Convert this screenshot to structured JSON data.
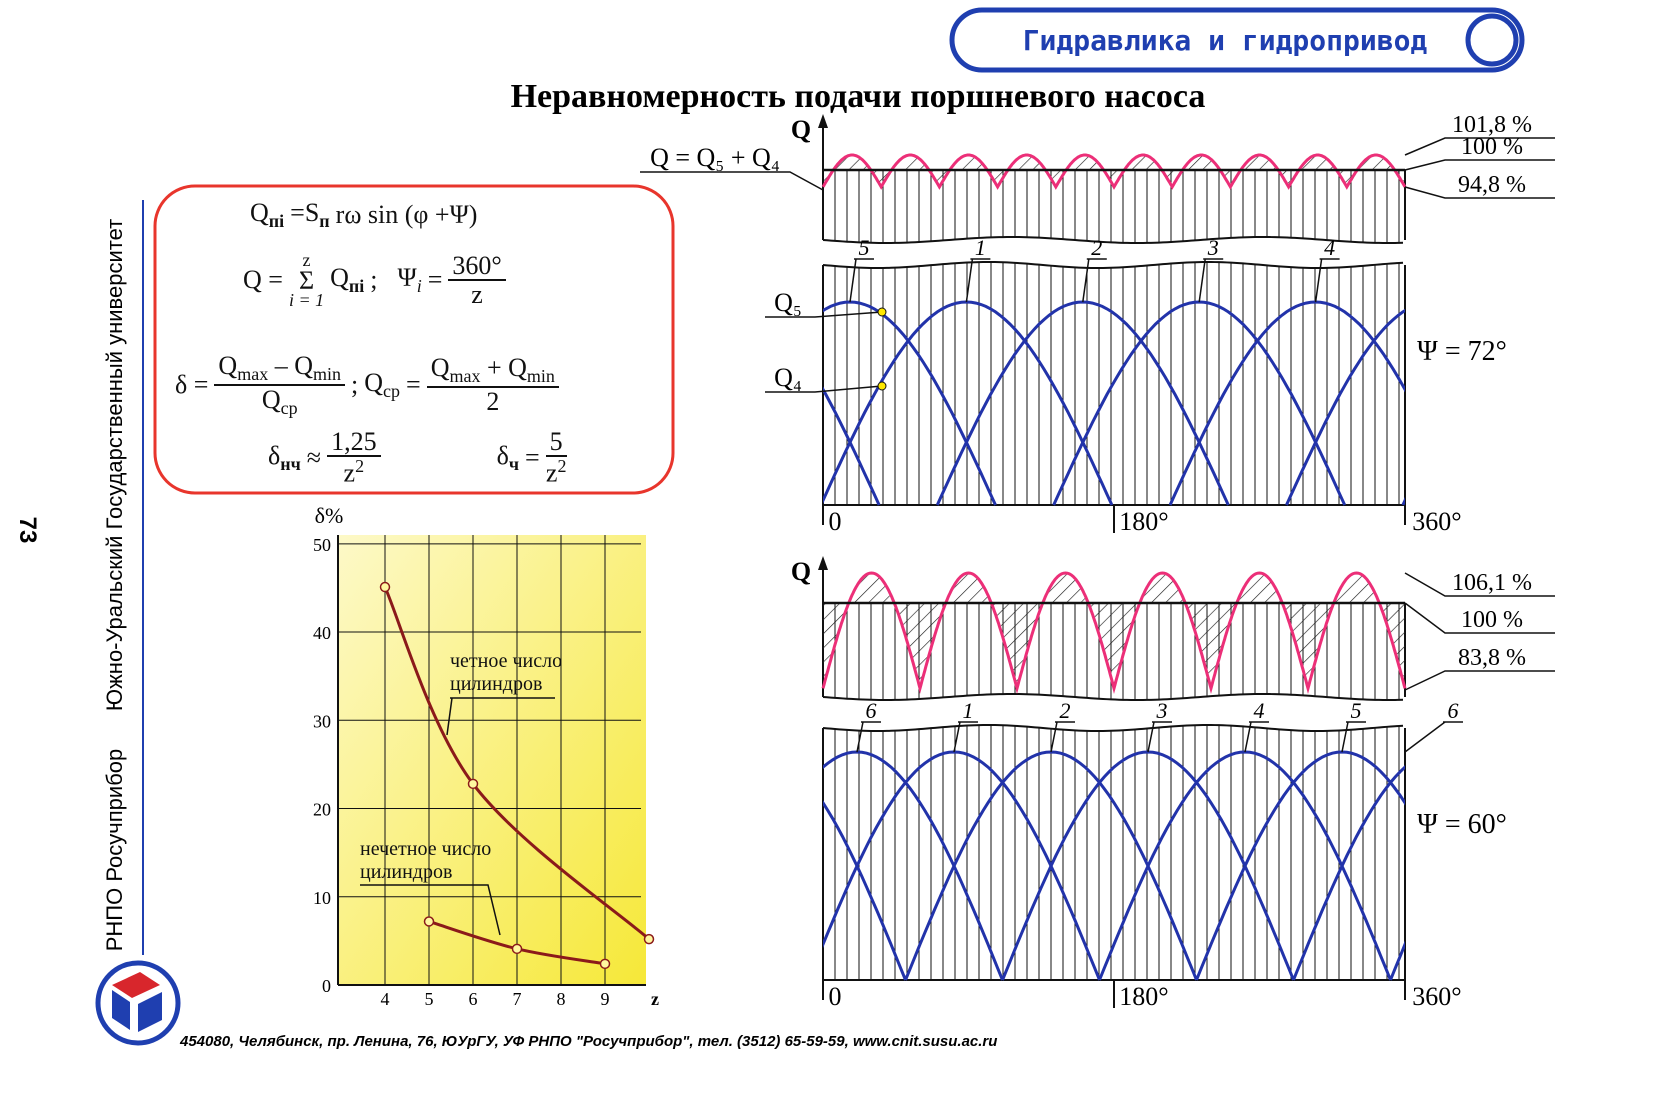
{
  "header": {
    "title": "Гидравлика и гидропривод"
  },
  "title": "Неравномерность подачи поршневого насоса",
  "sidebar": {
    "page": "73",
    "org": "РНПО Росучприбор",
    "university": "Южно-Уральский Государственный университет"
  },
  "footer": "454080, Челябинск, пр. Ленина, 76, ЮУрГУ, УФ РНПО \"Росучприбор\", тел. (3512) 65-59-59, www.cnit.susu.ac.ru",
  "formulas": {
    "f1": [
      "Q",
      "пi",
      "=S",
      "п",
      "rω sin (φ +Ψ)"
    ],
    "f2": [
      "Q =",
      "z",
      "Σ",
      "i = 1",
      "Q",
      "пi",
      ";",
      "Ψ",
      "i",
      "=",
      "360°",
      "z"
    ],
    "f3": [
      "δ =",
      "Q",
      "max",
      "– Q",
      "min",
      "Q",
      "ср",
      ";",
      "Q",
      "ср",
      "=",
      "Q",
      "max",
      "+ Q",
      "min",
      "2"
    ],
    "f4": [
      "δ",
      "нч",
      "≈",
      "1,25",
      "z",
      "2",
      "δ",
      "ч",
      "=",
      "5",
      "z",
      "2"
    ]
  },
  "chart_data": {
    "type": "line",
    "xlabel": "z",
    "ylabel": "δ%",
    "xlim": [
      3,
      10
    ],
    "xticks": [
      4,
      5,
      6,
      7,
      8,
      9
    ],
    "ylim": [
      0,
      51
    ],
    "yticks": [
      0,
      10,
      20,
      30,
      40,
      50
    ],
    "grid": true,
    "series": [
      {
        "name": "четное число цилиндров",
        "color": "#8b1a1a",
        "x": [
          4,
          6,
          10
        ],
        "values": [
          45.1,
          22.8,
          5.2
        ]
      },
      {
        "name": "нечетное число цилиндров",
        "color": "#8b1a1a",
        "x": [
          5,
          7,
          9
        ],
        "values": [
          7.2,
          4.1,
          2.4
        ]
      }
    ]
  },
  "diagrams": [
    {
      "axis_label": "Q",
      "sum_label": "Q = Q₅ + Q₄",
      "levels": [
        "101,8 %",
        "100 %",
        "94,8 %"
      ],
      "pistons": [
        "5",
        "1",
        "2",
        "3",
        "4"
      ],
      "points": [
        "Q₅",
        "Q₄"
      ],
      "phase": "Ψ = 72°",
      "angles": [
        "0",
        "180°",
        "360°"
      ]
    },
    {
      "axis_label": "Q",
      "levels": [
        "106,1 %",
        "100 %",
        "83,8 %"
      ],
      "pistons": [
        "6",
        "1",
        "2",
        "3",
        "4",
        "5",
        "6"
      ],
      "phase": "Ψ = 60°",
      "angles": [
        "0",
        "180°",
        "360°"
      ]
    }
  ]
}
